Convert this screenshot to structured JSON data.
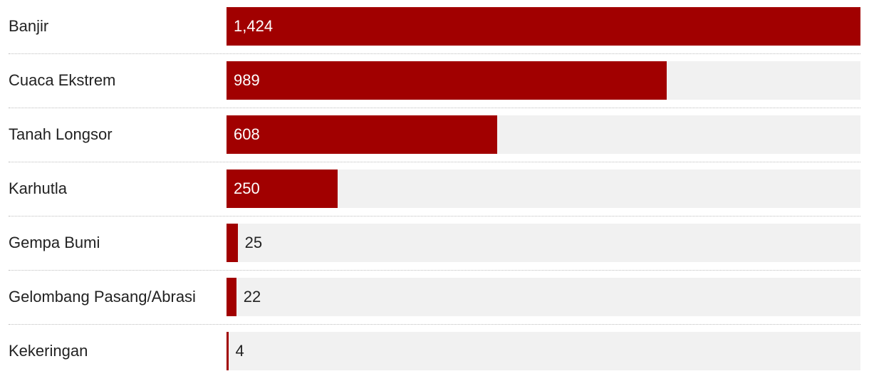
{
  "chart_data": {
    "type": "bar",
    "orientation": "horizontal",
    "categories": [
      "Banjir",
      "Cuaca Ekstrem",
      "Tanah Longsor",
      "Karhutla",
      "Gempa Bumi",
      "Gelombang Pasang/Abrasi",
      "Kekeringan"
    ],
    "values": [
      1424,
      989,
      608,
      250,
      25,
      22,
      4
    ],
    "value_labels": [
      "1,424",
      "989",
      "608",
      "250",
      "25",
      "22",
      "4"
    ],
    "xlim": [
      0,
      1424
    ],
    "grid": false,
    "legend": "none",
    "colors": {
      "bar": "#a10000",
      "track": "#f1f1f1",
      "divider": "#bdbdbd"
    }
  }
}
